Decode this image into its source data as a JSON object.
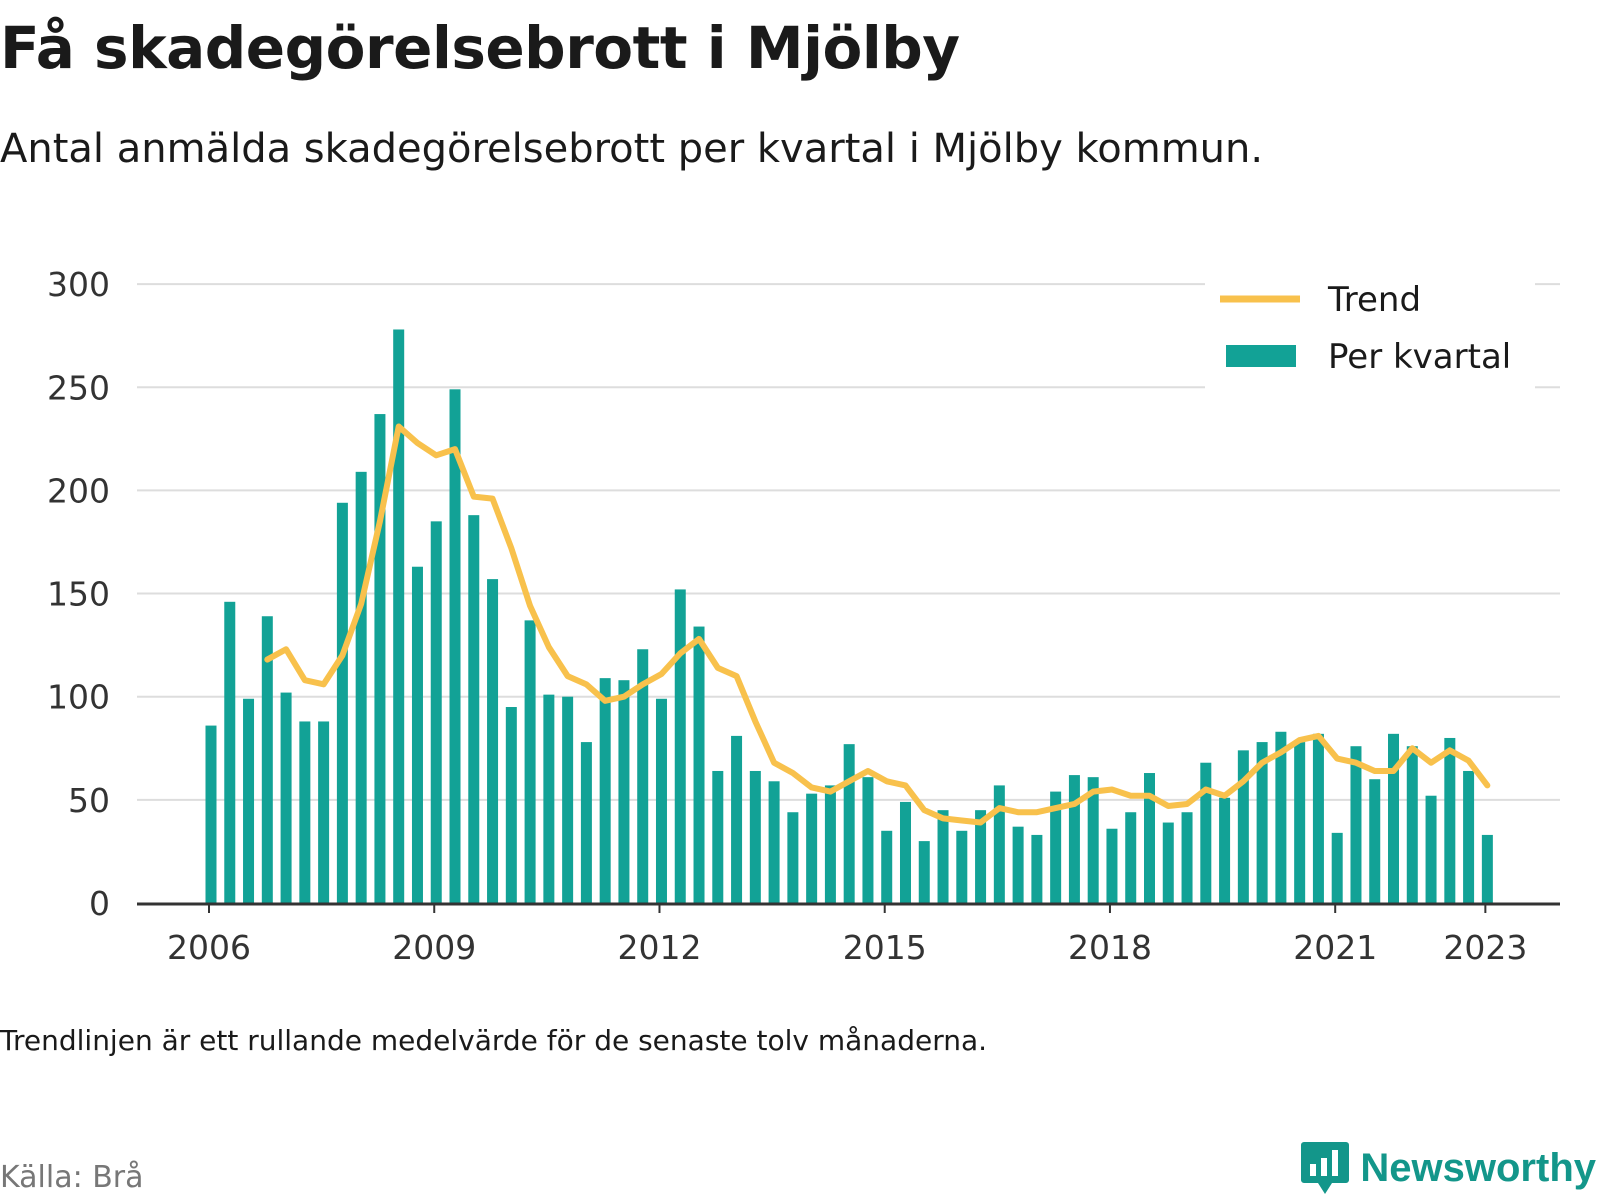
{
  "title": "Få skadegörelsebrott i Mjölby",
  "subtitle": "Antal anmälda skadegörelsebrott per kvartal i Mjölby kommun.",
  "footnote": "Trendlinjen är ett rullande medelvärde för de senaste tolv månaderna.",
  "source": "Källa: Brå",
  "brand": {
    "name": "Newsworthy",
    "icon": "newsworthy-logo-icon"
  },
  "colors": {
    "bars": "#12a296",
    "trend": "#f8c14c",
    "grid": "#dddddd",
    "axis": "#333333",
    "brand": "#13968a"
  },
  "chart_data": {
    "type": "bar",
    "x_start": "2006 Q1",
    "x_ticks": [
      "2006",
      "2009",
      "2012",
      "2015",
      "2018",
      "2021",
      "2023"
    ],
    "y_ticks": [
      "0",
      "50",
      "100",
      "150",
      "200",
      "250",
      "300"
    ],
    "ylim": [
      0,
      300
    ],
    "grid": true,
    "legend_position": "top-right",
    "series": [
      {
        "name": "Per kvartal",
        "type": "bar",
        "values": [
          86,
          146,
          99,
          139,
          102,
          88,
          88,
          194,
          209,
          237,
          278,
          163,
          185,
          249,
          188,
          157,
          95,
          137,
          101,
          100,
          78,
          109,
          108,
          123,
          99,
          152,
          134,
          64,
          81,
          64,
          59,
          44,
          53,
          57,
          77,
          61,
          35,
          49,
          30,
          45,
          35,
          45,
          57,
          37,
          33,
          54,
          62,
          61,
          36,
          44,
          63,
          39,
          44,
          68,
          51,
          74,
          78,
          83,
          78,
          82,
          34,
          76,
          60,
          82,
          76,
          52,
          80,
          64,
          33
        ]
      },
      {
        "name": "Trend",
        "type": "line",
        "start_index": 3,
        "values": [
          118,
          123,
          108,
          106,
          120,
          145,
          185,
          231,
          223,
          217,
          220,
          197,
          196,
          172,
          144,
          124,
          110,
          106,
          98,
          100,
          106,
          111,
          121,
          128,
          114,
          110,
          88,
          68,
          63,
          56,
          54,
          59,
          64,
          59,
          57,
          45,
          41,
          40,
          39,
          46,
          44,
          44,
          46,
          48,
          54,
          55,
          52,
          52,
          47,
          48,
          55,
          52,
          59,
          68,
          73,
          79,
          81,
          70,
          68,
          64,
          64,
          75,
          68,
          74,
          69,
          57
        ]
      }
    ]
  }
}
